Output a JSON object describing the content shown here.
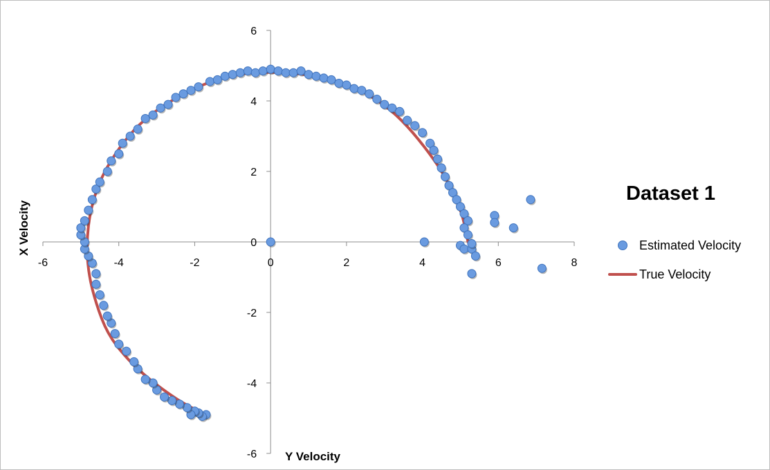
{
  "chart_data": {
    "type": "scatter",
    "title": "Dataset 1",
    "xlabel": "Y Velocity",
    "ylabel": "X Velocity",
    "xlim": [
      -6,
      8
    ],
    "ylim": [
      -6,
      6
    ],
    "xticks": [
      -6,
      -4,
      -2,
      0,
      2,
      4,
      6,
      8
    ],
    "yticks": [
      -6,
      -4,
      -2,
      0,
      2,
      4,
      6
    ],
    "grid": false,
    "legend_position": "right",
    "series": [
      {
        "name": "Estimated Velocity",
        "type": "scatter",
        "color": "#6a9be0",
        "points": [
          [
            -1.7,
            -4.9
          ],
          [
            -1.8,
            -4.95
          ],
          [
            -1.9,
            -4.85
          ],
          [
            -2.0,
            -4.8
          ],
          [
            -2.1,
            -4.9
          ],
          [
            -2.2,
            -4.7
          ],
          [
            -2.4,
            -4.6
          ],
          [
            -2.6,
            -4.5
          ],
          [
            -2.8,
            -4.4
          ],
          [
            -3.0,
            -4.2
          ],
          [
            -3.1,
            -4.0
          ],
          [
            -3.3,
            -3.9
          ],
          [
            -3.5,
            -3.6
          ],
          [
            -3.6,
            -3.4
          ],
          [
            -3.8,
            -3.1
          ],
          [
            -4.0,
            -2.9
          ],
          [
            -4.1,
            -2.6
          ],
          [
            -4.2,
            -2.3
          ],
          [
            -4.3,
            -2.1
          ],
          [
            -4.4,
            -1.8
          ],
          [
            -4.5,
            -1.5
          ],
          [
            -4.6,
            -1.2
          ],
          [
            -4.6,
            -0.9
          ],
          [
            -4.7,
            -0.6
          ],
          [
            -4.8,
            -0.4
          ],
          [
            -4.9,
            -0.2
          ],
          [
            -4.9,
            0.0
          ],
          [
            -5.0,
            0.2
          ],
          [
            -5.0,
            0.4
          ],
          [
            -4.9,
            0.6
          ],
          [
            -4.8,
            0.9
          ],
          [
            -4.7,
            1.2
          ],
          [
            -4.6,
            1.5
          ],
          [
            -4.5,
            1.7
          ],
          [
            -4.3,
            2.0
          ],
          [
            -4.2,
            2.3
          ],
          [
            -4.0,
            2.5
          ],
          [
            -3.9,
            2.8
          ],
          [
            -3.7,
            3.0
          ],
          [
            -3.5,
            3.2
          ],
          [
            -3.3,
            3.5
          ],
          [
            -3.1,
            3.6
          ],
          [
            -2.9,
            3.8
          ],
          [
            -2.7,
            3.9
          ],
          [
            -2.5,
            4.1
          ],
          [
            -2.3,
            4.2
          ],
          [
            -2.1,
            4.3
          ],
          [
            -1.9,
            4.4
          ],
          [
            -1.6,
            4.55
          ],
          [
            -1.4,
            4.6
          ],
          [
            -1.2,
            4.7
          ],
          [
            -1.0,
            4.75
          ],
          [
            -0.8,
            4.8
          ],
          [
            -0.6,
            4.85
          ],
          [
            -0.4,
            4.8
          ],
          [
            -0.2,
            4.85
          ],
          [
            0.0,
            4.9
          ],
          [
            0.2,
            4.85
          ],
          [
            0.4,
            4.8
          ],
          [
            0.6,
            4.8
          ],
          [
            0.8,
            4.85
          ],
          [
            1.0,
            4.75
          ],
          [
            1.2,
            4.7
          ],
          [
            1.4,
            4.65
          ],
          [
            1.6,
            4.6
          ],
          [
            1.8,
            4.5
          ],
          [
            2.0,
            4.45
          ],
          [
            2.2,
            4.35
          ],
          [
            2.4,
            4.3
          ],
          [
            2.6,
            4.2
          ],
          [
            2.8,
            4.05
          ],
          [
            3.0,
            3.9
          ],
          [
            3.2,
            3.8
          ],
          [
            3.4,
            3.7
          ],
          [
            3.6,
            3.45
          ],
          [
            3.8,
            3.3
          ],
          [
            4.0,
            3.1
          ],
          [
            4.2,
            2.8
          ],
          [
            4.3,
            2.6
          ],
          [
            4.4,
            2.35
          ],
          [
            4.5,
            2.1
          ],
          [
            4.6,
            1.85
          ],
          [
            4.7,
            1.6
          ],
          [
            4.8,
            1.4
          ],
          [
            4.9,
            1.2
          ],
          [
            5.0,
            1.0
          ],
          [
            5.1,
            0.8
          ],
          [
            5.2,
            0.6
          ],
          [
            5.1,
            0.4
          ],
          [
            5.2,
            0.2
          ],
          [
            5.0,
            -0.1
          ],
          [
            5.1,
            -0.2
          ],
          [
            5.3,
            -0.2
          ],
          [
            5.4,
            -0.4
          ],
          [
            5.3,
            -0.05
          ],
          [
            0.0,
            0.0
          ],
          [
            4.05,
            0.0
          ],
          [
            5.9,
            0.75
          ],
          [
            5.9,
            0.55
          ],
          [
            6.4,
            0.4
          ],
          [
            6.85,
            1.2
          ],
          [
            7.15,
            -0.75
          ],
          [
            5.3,
            -0.9
          ]
        ]
      },
      {
        "name": "True Velocity",
        "type": "line",
        "color": "#c0504d",
        "points": [
          [
            5.2,
            0.0
          ],
          [
            5.1,
            0.6
          ],
          [
            4.9,
            1.2
          ],
          [
            4.6,
            1.85
          ],
          [
            4.2,
            2.5
          ],
          [
            3.6,
            3.3
          ],
          [
            3.0,
            3.9
          ],
          [
            2.3,
            4.35
          ],
          [
            1.6,
            4.6
          ],
          [
            0.8,
            4.78
          ],
          [
            0.0,
            4.82
          ],
          [
            -0.8,
            4.78
          ],
          [
            -1.6,
            4.55
          ],
          [
            -2.3,
            4.2
          ],
          [
            -3.0,
            3.75
          ],
          [
            -3.6,
            3.2
          ],
          [
            -4.1,
            2.5
          ],
          [
            -4.5,
            1.75
          ],
          [
            -4.75,
            0.9
          ],
          [
            -4.85,
            0.0
          ],
          [
            -4.8,
            -0.9
          ],
          [
            -4.6,
            -1.75
          ],
          [
            -4.3,
            -2.6
          ],
          [
            -3.8,
            -3.3
          ],
          [
            -3.2,
            -3.9
          ],
          [
            -2.5,
            -4.45
          ],
          [
            -2.0,
            -4.75
          ],
          [
            -1.7,
            -4.9
          ]
        ]
      }
    ]
  },
  "legend": [
    {
      "label": "Estimated Velocity",
      "marker": "dot"
    },
    {
      "label": "True Velocity",
      "marker": "line"
    }
  ]
}
